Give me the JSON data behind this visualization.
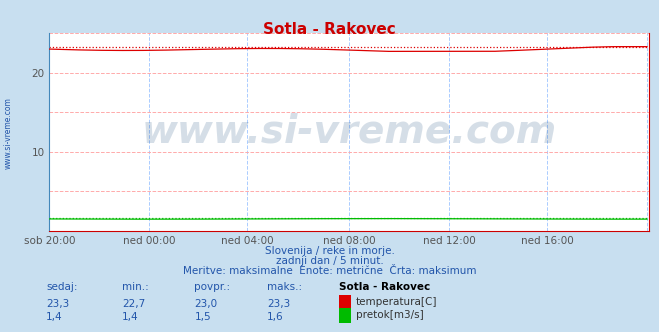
{
  "title": "Sotla - Rakovec",
  "title_color": "#cc0000",
  "bg_color": "#c8dff0",
  "plot_bg_color": "#ffffff",
  "grid_color_h": "#ffaaaa",
  "grid_color_v": "#aaccff",
  "x_labels": [
    "sob 20:00",
    "ned 00:00",
    "ned 04:00",
    "ned 08:00",
    "ned 12:00",
    "ned 16:00"
  ],
  "x_ticks_norm": [
    0.0,
    0.1667,
    0.3333,
    0.5,
    0.6667,
    0.8333
  ],
  "x_max": 288,
  "y_min": 0,
  "y_max": 25,
  "y_ticks": [
    10,
    20
  ],
  "temp_value": 23.0,
  "temp_max": 23.3,
  "temp_min": 22.7,
  "temp_noise": 0.12,
  "flow_value": 1.5,
  "flow_max": 1.6,
  "flow_min": 1.4,
  "flow_noise": 0.015,
  "temp_color": "#dd0000",
  "flow_color": "#00bb00",
  "watermark": "www.si-vreme.com",
  "watermark_color": "#1a4a7a",
  "watermark_alpha": 0.18,
  "watermark_fontsize": 28,
  "subtitle1": "Slovenija / reke in morje.",
  "subtitle2": "zadnji dan / 5 minut.",
  "subtitle3": "Meritve: maksimalne  Enote: metrične  Črta: maksimum",
  "subtitle_color": "#2255aa",
  "table_headers": [
    "sedaj:",
    "min.:",
    "povpr.:",
    "maks.:",
    "Sotla - Rakovec"
  ],
  "table_row1": [
    "23,3",
    "22,7",
    "23,0",
    "23,3"
  ],
  "table_row2": [
    "1,4",
    "1,4",
    "1,5",
    "1,6"
  ],
  "label_temp": "temperatura[C]",
  "label_flow": "pretok[m3/s]",
  "left_label": "www.si-vreme.com",
  "left_label_color": "#2255aa",
  "spine_color_bottom": "#cc0000",
  "spine_color_left": "#4488bb",
  "axis_tick_color": "#555555",
  "axis_fontsize": 7.5
}
